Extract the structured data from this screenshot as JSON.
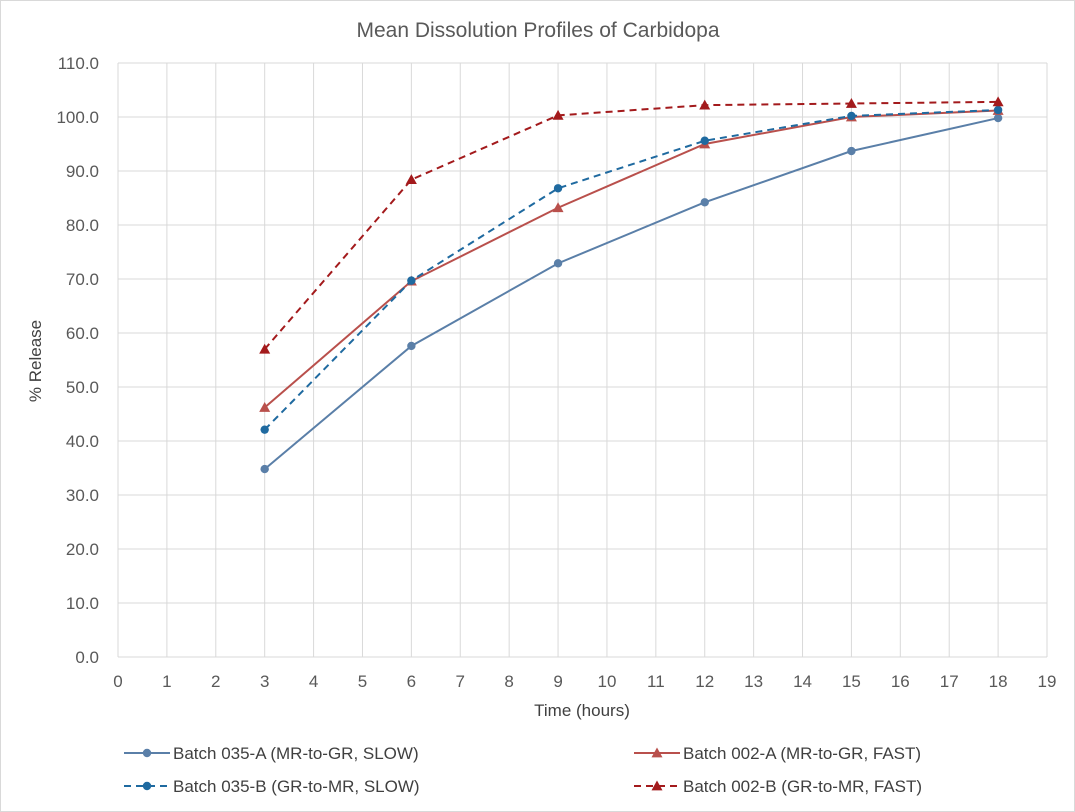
{
  "chart_data": {
    "type": "line",
    "title": "Mean Dissolution Profiles of Carbidopa",
    "xlabel": "Time (hours)",
    "ylabel": "% Release",
    "xlim": [
      0,
      19
    ],
    "ylim": [
      0,
      110
    ],
    "x_ticks": [
      "0",
      "1",
      "2",
      "3",
      "4",
      "5",
      "6",
      "7",
      "8",
      "9",
      "10",
      "11",
      "12",
      "13",
      "14",
      "15",
      "16",
      "17",
      "18",
      "19"
    ],
    "y_ticks": [
      "0.0",
      "10.0",
      "20.0",
      "30.0",
      "40.0",
      "50.0",
      "60.0",
      "70.0",
      "80.0",
      "90.0",
      "100.0",
      "110.0"
    ],
    "grid": true,
    "legend_position": "bottom",
    "x": [
      3,
      6,
      9,
      12,
      15,
      18
    ],
    "series": [
      {
        "name": "Batch 035-A (MR-to-GR, SLOW)",
        "values": [
          34.8,
          57.6,
          72.9,
          84.2,
          93.7,
          99.8
        ],
        "color": "#5a7fa8",
        "dash": "solid",
        "marker": "circle"
      },
      {
        "name": "Batch 002-A (MR-to-GR, FAST)",
        "values": [
          46.2,
          69.6,
          83.2,
          95.0,
          100.0,
          101.2
        ],
        "color": "#b9504c",
        "dash": "solid",
        "marker": "triangle"
      },
      {
        "name": "Batch 035-B (GR-to-MR, SLOW)",
        "values": [
          42.1,
          69.7,
          86.8,
          95.6,
          100.2,
          101.3
        ],
        "color": "#1f6aa0",
        "dash": "dashed",
        "marker": "circle"
      },
      {
        "name": "Batch 002-B (GR-to-MR, FAST)",
        "values": [
          57.0,
          88.4,
          100.3,
          102.2,
          102.5,
          102.8
        ],
        "color": "#a31a1c",
        "dash": "dashed",
        "marker": "triangle"
      }
    ]
  }
}
